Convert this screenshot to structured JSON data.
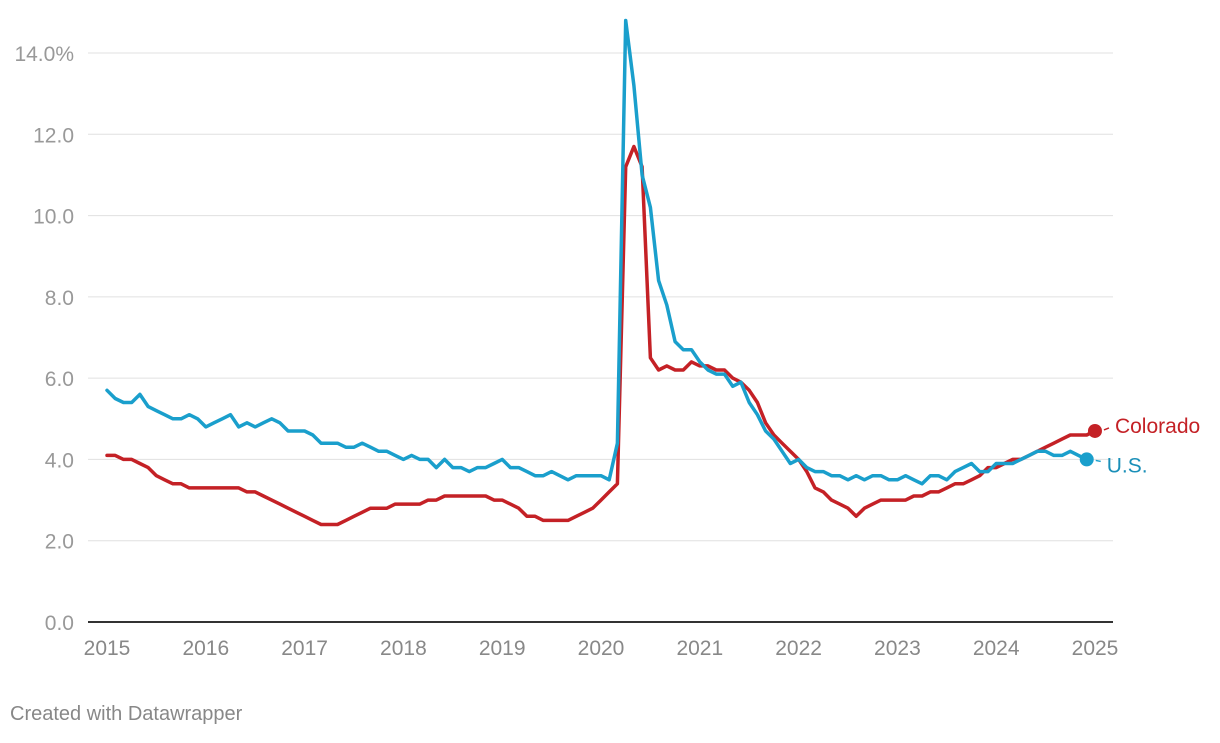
{
  "footer": "Created with Datawrapper",
  "chart_data": {
    "type": "line",
    "title": "",
    "xlabel": "",
    "ylabel": "",
    "ylim": [
      0,
      14.8
    ],
    "xlim": [
      2015.0,
      2025.0
    ],
    "y_ticks": [
      {
        "value": 0,
        "label": "0.0"
      },
      {
        "value": 2,
        "label": "2.0"
      },
      {
        "value": 4,
        "label": "4.0"
      },
      {
        "value": 6,
        "label": "6.0"
      },
      {
        "value": 8,
        "label": "8.0"
      },
      {
        "value": 10,
        "label": "10.0"
      },
      {
        "value": 12,
        "label": "12.0"
      },
      {
        "value": 14,
        "label": "14.0%"
      }
    ],
    "x_ticks": [
      "2015",
      "2016",
      "2017",
      "2018",
      "2019",
      "2020",
      "2021",
      "2022",
      "2023",
      "2024",
      "2025"
    ],
    "grid": "horizontal",
    "legend": "direct labels at line ends",
    "series": [
      {
        "name": "Colorado",
        "color": "#c42126",
        "x_start": 2015.0,
        "step": 0.08333,
        "values": [
          4.1,
          4.1,
          4.0,
          4.0,
          3.9,
          3.8,
          3.6,
          3.5,
          3.4,
          3.4,
          3.3,
          3.3,
          3.3,
          3.3,
          3.3,
          3.3,
          3.3,
          3.2,
          3.2,
          3.1,
          3.0,
          2.9,
          2.8,
          2.7,
          2.6,
          2.5,
          2.4,
          2.4,
          2.4,
          2.5,
          2.6,
          2.7,
          2.8,
          2.8,
          2.8,
          2.9,
          2.9,
          2.9,
          2.9,
          3.0,
          3.0,
          3.1,
          3.1,
          3.1,
          3.1,
          3.1,
          3.1,
          3.0,
          3.0,
          2.9,
          2.8,
          2.6,
          2.6,
          2.5,
          2.5,
          2.5,
          2.5,
          2.6,
          2.7,
          2.8,
          3.0,
          3.2,
          3.4,
          11.2,
          11.7,
          11.2,
          6.5,
          6.2,
          6.3,
          6.2,
          6.2,
          6.4,
          6.3,
          6.3,
          6.2,
          6.2,
          6.0,
          5.9,
          5.7,
          5.4,
          4.9,
          4.6,
          4.4,
          4.2,
          4.0,
          3.7,
          3.3,
          3.2,
          3.0,
          2.9,
          2.8,
          2.6,
          2.8,
          2.9,
          3.0,
          3.0,
          3.0,
          3.0,
          3.1,
          3.1,
          3.2,
          3.2,
          3.3,
          3.4,
          3.4,
          3.5,
          3.6,
          3.8,
          3.8,
          3.9,
          4.0,
          4.0,
          4.1,
          4.2,
          4.3,
          4.4,
          4.5,
          4.6,
          4.6,
          4.6,
          4.7
        ]
      },
      {
        "name": "U.S.",
        "color": "#1a9fcc",
        "x_start": 2015.0,
        "step": 0.08333,
        "values": [
          5.7,
          5.5,
          5.4,
          5.4,
          5.6,
          5.3,
          5.2,
          5.1,
          5.0,
          5.0,
          5.1,
          5.0,
          4.8,
          4.9,
          5.0,
          5.1,
          4.8,
          4.9,
          4.8,
          4.9,
          5.0,
          4.9,
          4.7,
          4.7,
          4.7,
          4.6,
          4.4,
          4.4,
          4.4,
          4.3,
          4.3,
          4.4,
          4.3,
          4.2,
          4.2,
          4.1,
          4.0,
          4.1,
          4.0,
          4.0,
          3.8,
          4.0,
          3.8,
          3.8,
          3.7,
          3.8,
          3.8,
          3.9,
          4.0,
          3.8,
          3.8,
          3.7,
          3.6,
          3.6,
          3.7,
          3.6,
          3.5,
          3.6,
          3.6,
          3.6,
          3.6,
          3.5,
          4.4,
          14.8,
          13.2,
          11.0,
          10.2,
          8.4,
          7.8,
          6.9,
          6.7,
          6.7,
          6.4,
          6.2,
          6.1,
          6.1,
          5.8,
          5.9,
          5.4,
          5.1,
          4.7,
          4.5,
          4.2,
          3.9,
          4.0,
          3.8,
          3.7,
          3.7,
          3.6,
          3.6,
          3.5,
          3.6,
          3.5,
          3.6,
          3.6,
          3.5,
          3.5,
          3.6,
          3.5,
          3.4,
          3.6,
          3.6,
          3.5,
          3.7,
          3.8,
          3.9,
          3.7,
          3.7,
          3.9,
          3.9,
          3.9,
          4.0,
          4.1,
          4.2,
          4.2,
          4.1,
          4.1,
          4.2,
          4.1,
          4.0
        ]
      }
    ]
  }
}
